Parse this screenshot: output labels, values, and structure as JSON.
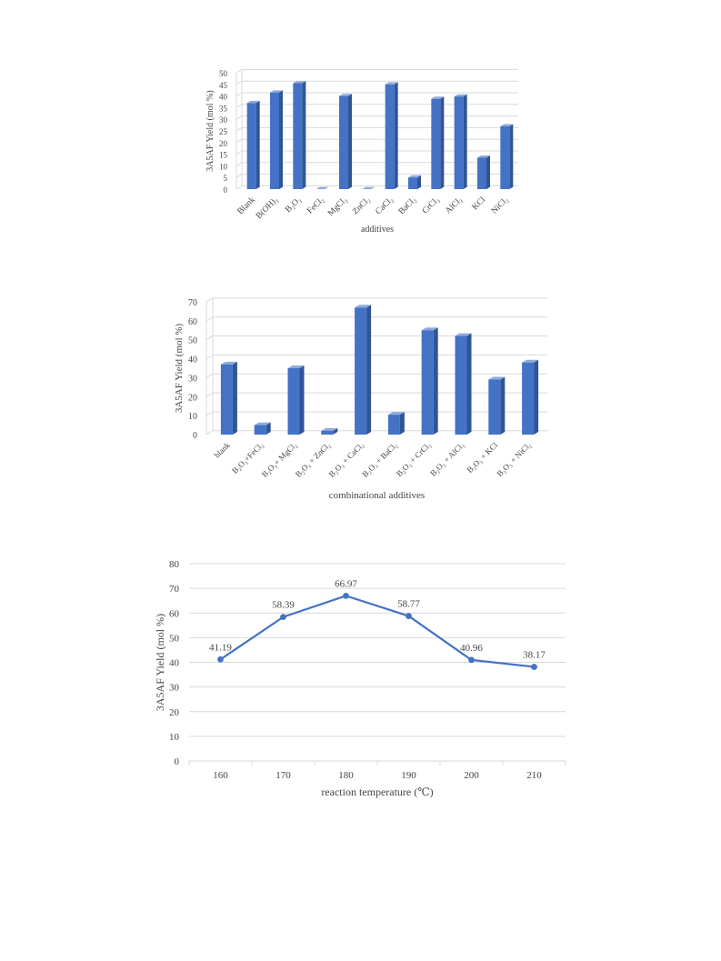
{
  "colors": {
    "bar_front": "#4472C4",
    "bar_side": "#2F5597",
    "bar_top": "#8FAADC",
    "grid": "#D9D9D9",
    "line": "#4472C4"
  },
  "chart_data": [
    {
      "type": "bar",
      "style": "3d",
      "categories": [
        "Blank",
        "B(OH)₃",
        "B₂O₃",
        "FeCl₂",
        "MgCl₂",
        "ZnCl₂",
        "CaCl₂",
        "BaCl₂",
        "CrCl₃",
        "AlCl₃",
        "KCl",
        "NiCl₂"
      ],
      "values": [
        37,
        41.5,
        45.5,
        0,
        40,
        0,
        45,
        5,
        38.8,
        39.8,
        13.5,
        27
      ],
      "xlabel": "additives",
      "ylabel": "3A5AF Yield (mol %)",
      "ylim": [
        0,
        50
      ],
      "yticks": [
        0,
        5,
        10,
        15,
        20,
        25,
        30,
        35,
        40,
        45,
        50
      ],
      "grid": true
    },
    {
      "type": "bar",
      "style": "3d",
      "categories": [
        "blank",
        "B₂O₃+FeCl₂",
        "B₂O₃+ MgCl₂",
        "B₂O₃ + ZnCl₂",
        "B₂O₃ + CaCl₂",
        "B₂O₃ + BaCl₂",
        "B₂O₃ + CrCl₃",
        "B₂O₃ + AlCl₃",
        "B₂O₃ + KCl",
        "B₂O₃ + NiCl₂"
      ],
      "values": [
        37,
        5,
        35,
        2,
        67,
        10.5,
        55,
        52,
        29,
        38
      ],
      "xlabel": "combinational additives",
      "ylabel": "3A5AF Yield (mol %)",
      "ylim": [
        0,
        70
      ],
      "yticks": [
        0,
        10,
        20,
        30,
        40,
        50,
        60,
        70
      ],
      "grid": true
    },
    {
      "type": "line",
      "x": [
        160,
        170,
        180,
        190,
        200,
        210
      ],
      "values": [
        41.19,
        58.39,
        66.97,
        58.77,
        40.96,
        38.17
      ],
      "data_labels": [
        "41.19",
        "58.39",
        "66.97",
        "58.77",
        "40.96",
        "38.17"
      ],
      "xlabel": "reaction temperature (℃)",
      "ylabel": "3A5AF Yield (mol %)",
      "ylim": [
        0,
        80
      ],
      "yticks": [
        0,
        10,
        20,
        30,
        40,
        50,
        60,
        70,
        80
      ],
      "grid": true
    }
  ]
}
